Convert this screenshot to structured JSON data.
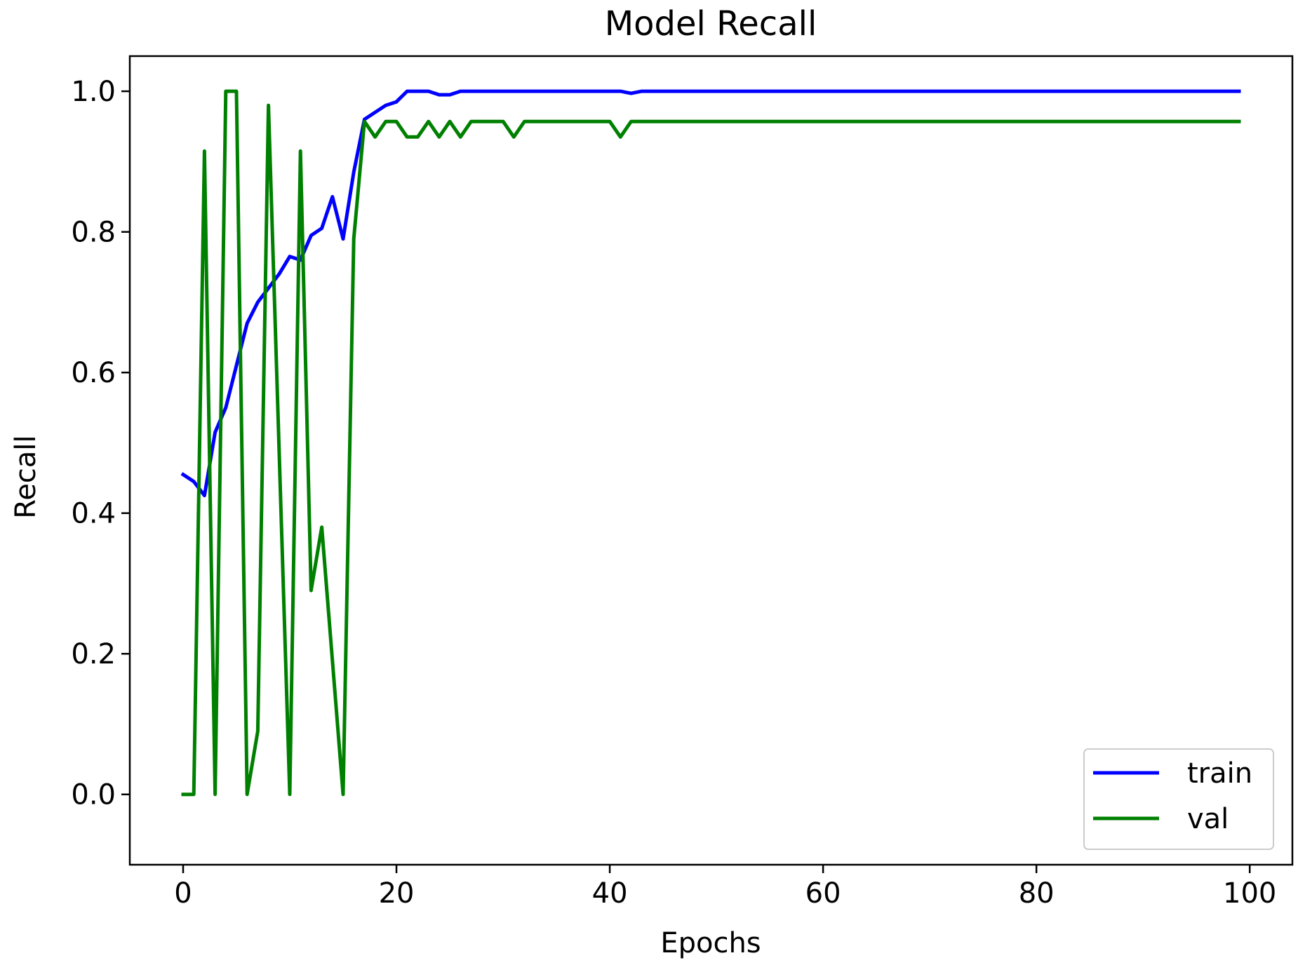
{
  "chart_data": {
    "type": "line",
    "title": "Model Recall",
    "xlabel": "Epochs",
    "ylabel": "Recall",
    "xlim": [
      -5,
      104
    ],
    "ylim": [
      -0.1,
      1.05
    ],
    "xticks": [
      0,
      20,
      40,
      60,
      80,
      100
    ],
    "yticks": [
      0.0,
      0.2,
      0.4,
      0.6,
      0.8,
      1.0
    ],
    "xtick_labels": [
      "0",
      "20",
      "40",
      "60",
      "80",
      "100"
    ],
    "ytick_labels": [
      "0.0",
      "0.2",
      "0.4",
      "0.6",
      "0.8",
      "1.0"
    ],
    "grid": false,
    "legend_position": "bottom-right",
    "series": [
      {
        "name": "train",
        "color": "#0000ff",
        "x": [
          0,
          1,
          2,
          3,
          4,
          5,
          6,
          7,
          8,
          9,
          10,
          11,
          12,
          13,
          14,
          15,
          16,
          17,
          18,
          19,
          20,
          21,
          22,
          23,
          24,
          25,
          26,
          27,
          28,
          29,
          30,
          31,
          32,
          33,
          34,
          35,
          36,
          37,
          38,
          39,
          40,
          41,
          42,
          43,
          44,
          45,
          46,
          47,
          48,
          49,
          50,
          51,
          52,
          53,
          54,
          55,
          56,
          57,
          58,
          59,
          60,
          61,
          62,
          63,
          64,
          65,
          66,
          67,
          68,
          69,
          70,
          71,
          72,
          73,
          74,
          75,
          76,
          77,
          78,
          79,
          80,
          81,
          82,
          83,
          84,
          85,
          86,
          87,
          88,
          89,
          90,
          91,
          92,
          93,
          94,
          95,
          96,
          97,
          98,
          99
        ],
        "y": [
          0.455,
          0.445,
          0.425,
          0.515,
          0.55,
          0.61,
          0.67,
          0.7,
          0.72,
          0.74,
          0.765,
          0.76,
          0.795,
          0.805,
          0.85,
          0.79,
          0.885,
          0.96,
          0.97,
          0.98,
          0.985,
          1.0,
          1.0,
          1.0,
          0.995,
          0.995,
          1.0,
          1.0,
          1.0,
          1.0,
          1.0,
          1.0,
          1.0,
          1.0,
          1.0,
          1.0,
          1.0,
          1.0,
          1.0,
          1.0,
          1.0,
          1.0,
          0.997,
          1.0,
          1.0,
          1.0,
          1.0,
          1.0,
          1.0,
          1.0,
          1.0,
          1.0,
          1.0,
          1.0,
          1.0,
          1.0,
          1.0,
          1.0,
          1.0,
          1.0,
          1.0,
          1.0,
          1.0,
          1.0,
          1.0,
          1.0,
          1.0,
          1.0,
          1.0,
          1.0,
          1.0,
          1.0,
          1.0,
          1.0,
          1.0,
          1.0,
          1.0,
          1.0,
          1.0,
          1.0,
          1.0,
          1.0,
          1.0,
          1.0,
          1.0,
          1.0,
          1.0,
          1.0,
          1.0,
          1.0,
          1.0,
          1.0,
          1.0,
          1.0,
          1.0,
          1.0,
          1.0,
          1.0,
          1.0,
          1.0
        ]
      },
      {
        "name": "val",
        "color": "#008000",
        "x": [
          0,
          1,
          2,
          3,
          4,
          5,
          6,
          7,
          8,
          9,
          10,
          11,
          12,
          13,
          14,
          15,
          16,
          17,
          18,
          19,
          20,
          21,
          22,
          23,
          24,
          25,
          26,
          27,
          28,
          29,
          30,
          31,
          32,
          33,
          34,
          35,
          36,
          37,
          38,
          39,
          40,
          41,
          42,
          43,
          44,
          45,
          46,
          47,
          48,
          49,
          50,
          51,
          52,
          53,
          54,
          55,
          56,
          57,
          58,
          59,
          60,
          61,
          62,
          63,
          64,
          65,
          66,
          67,
          68,
          69,
          70,
          71,
          72,
          73,
          74,
          75,
          76,
          77,
          78,
          79,
          80,
          81,
          82,
          83,
          84,
          85,
          86,
          87,
          88,
          89,
          90,
          91,
          92,
          93,
          94,
          95,
          96,
          97,
          98,
          99
        ],
        "y": [
          0.0,
          0.0,
          0.915,
          0.0,
          1.0,
          1.0,
          0.0,
          0.09,
          0.98,
          0.49,
          0.0,
          0.915,
          0.29,
          0.38,
          0.19,
          0.0,
          0.79,
          0.957,
          0.935,
          0.957,
          0.957,
          0.935,
          0.935,
          0.957,
          0.935,
          0.957,
          0.935,
          0.957,
          0.957,
          0.957,
          0.957,
          0.935,
          0.957,
          0.957,
          0.957,
          0.957,
          0.957,
          0.957,
          0.957,
          0.957,
          0.957,
          0.935,
          0.957,
          0.957,
          0.957,
          0.957,
          0.957,
          0.957,
          0.957,
          0.957,
          0.957,
          0.957,
          0.957,
          0.957,
          0.957,
          0.957,
          0.957,
          0.957,
          0.957,
          0.957,
          0.957,
          0.957,
          0.957,
          0.957,
          0.957,
          0.957,
          0.957,
          0.957,
          0.957,
          0.957,
          0.957,
          0.957,
          0.957,
          0.957,
          0.957,
          0.957,
          0.957,
          0.957,
          0.957,
          0.957,
          0.957,
          0.957,
          0.957,
          0.957,
          0.957,
          0.957,
          0.957,
          0.957,
          0.957,
          0.957,
          0.957,
          0.957,
          0.957,
          0.957,
          0.957,
          0.957,
          0.957,
          0.957,
          0.957,
          0.957
        ]
      }
    ]
  }
}
